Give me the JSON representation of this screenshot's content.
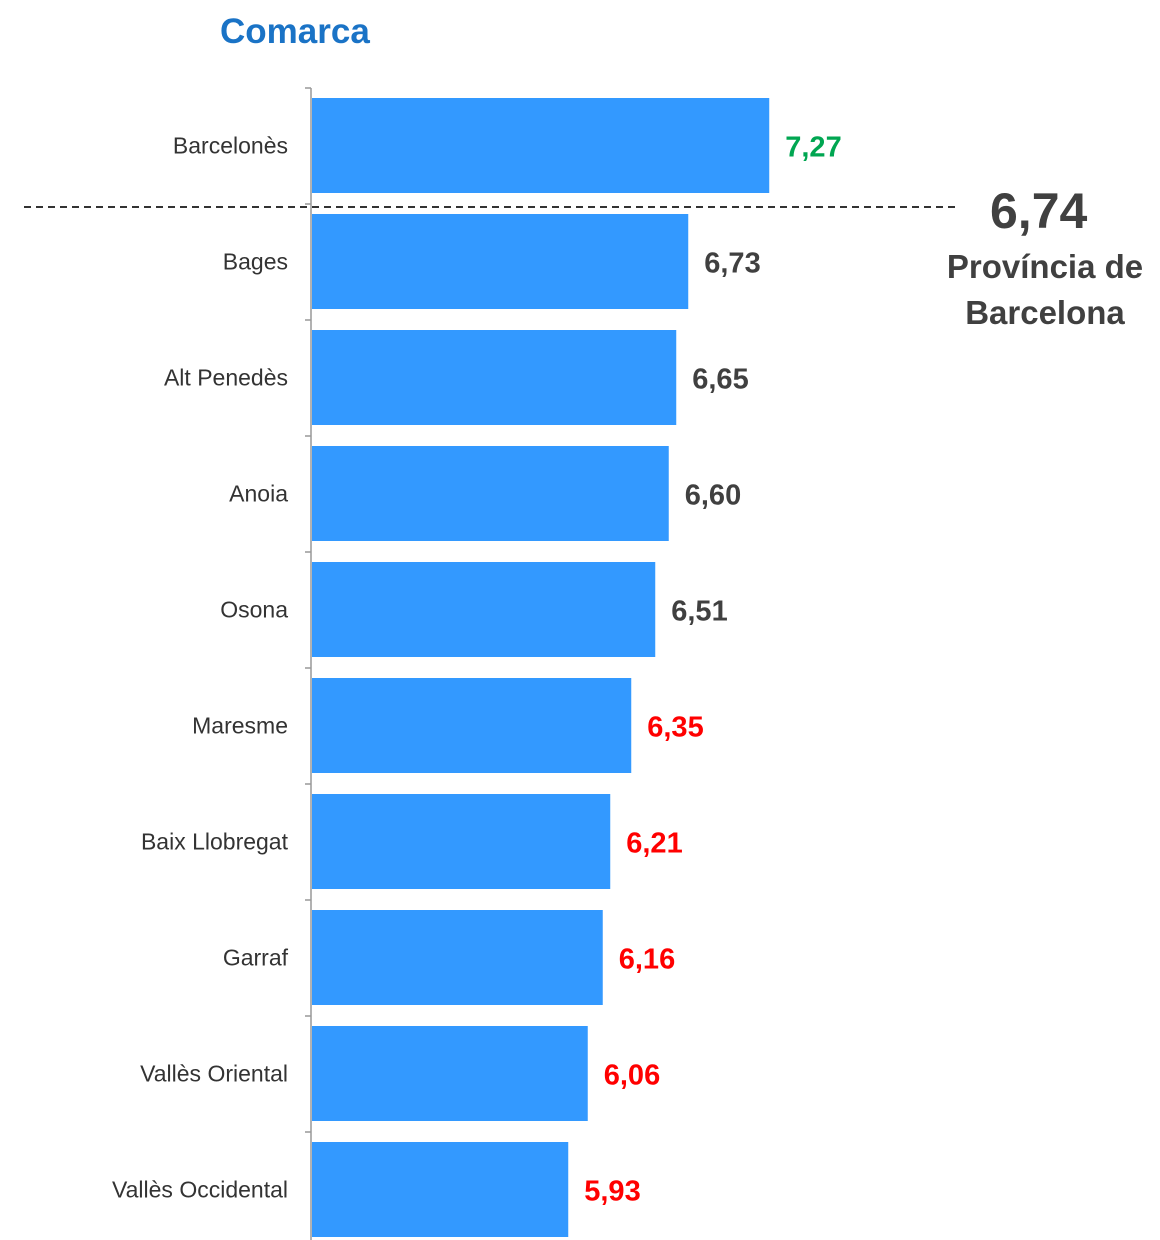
{
  "chart_data": {
    "type": "bar",
    "orientation": "horizontal",
    "title": "Comarca",
    "categories": [
      "Barcelonès",
      "Bages",
      "Alt Penedès",
      "Anoia",
      "Osona",
      "Maresme",
      "Baix Llobregat",
      "Garraf",
      "Vallès Oriental",
      "Vallès Occidental"
    ],
    "values": [
      7.27,
      6.73,
      6.65,
      6.6,
      6.51,
      6.35,
      6.21,
      6.16,
      6.06,
      5.93
    ],
    "value_labels": [
      "7,27",
      "6,73",
      "6,65",
      "6,60",
      "6,51",
      "6,35",
      "6,21",
      "6,16",
      "6,06",
      "5,93"
    ],
    "label_colors": [
      "#00a651",
      "#404040",
      "#404040",
      "#404040",
      "#404040",
      "#ff0000",
      "#ff0000",
      "#ff0000",
      "#ff0000",
      "#ff0000"
    ],
    "bar_color": "#3399ff",
    "reference_line": {
      "value": 6.74,
      "value_label": "6,74",
      "label": "Província de Barcelona",
      "style": "dashed"
    },
    "grid": false
  }
}
